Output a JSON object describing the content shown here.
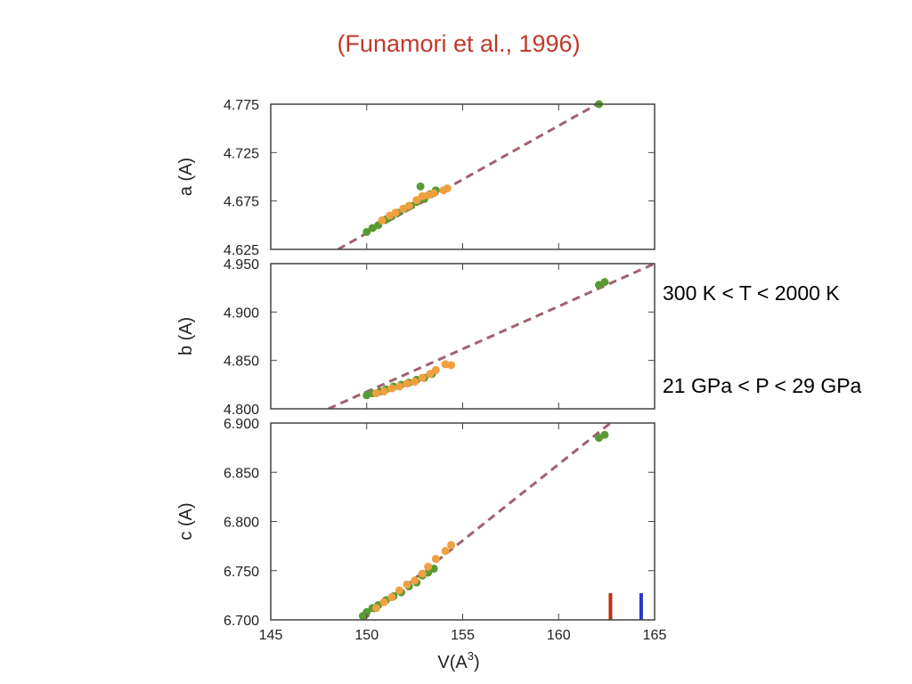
{
  "title": "(Funamori et al., 1996)",
  "annotations": {
    "temperature": "300 K < T < 2000 K",
    "pressure": "21 GPa < P < 29 GPa"
  },
  "colors": {
    "green": "#5a9a32",
    "orange": "#f0a040",
    "fit": "#a0616e",
    "red_marker": "#c03010",
    "blue_marker": "#2a38c8",
    "title": "#c0392b"
  },
  "chart_data": [
    {
      "type": "scatter",
      "panel": "a",
      "ylabel": "a (A)",
      "xlabel": "",
      "xlim": [
        145,
        165
      ],
      "ylim": [
        4.625,
        4.775
      ],
      "yticks": [
        "4.775",
        "4.725",
        "4.675",
        "4.625"
      ],
      "fit_line": [
        [
          148.5,
          4.625
        ],
        [
          162,
          4.775
        ]
      ],
      "series": [
        {
          "color": "green",
          "points": [
            [
              150,
              4.643
            ],
            [
              150.3,
              4.647
            ],
            [
              150.6,
              4.65
            ],
            [
              151,
              4.656
            ],
            [
              151.3,
              4.659
            ],
            [
              151.6,
              4.663
            ],
            [
              152,
              4.667
            ],
            [
              152.3,
              4.67
            ],
            [
              152.6,
              4.674
            ],
            [
              152.8,
              4.69
            ],
            [
              153,
              4.677
            ],
            [
              153.3,
              4.682
            ],
            [
              153.6,
              4.686
            ],
            [
              162.1,
              4.775
            ]
          ]
        },
        {
          "color": "orange",
          "points": [
            [
              150.8,
              4.655
            ],
            [
              151.2,
              4.66
            ],
            [
              151.5,
              4.663
            ],
            [
              151.9,
              4.667
            ],
            [
              152.2,
              4.67
            ],
            [
              152.6,
              4.676
            ],
            [
              152.9,
              4.68
            ],
            [
              153.2,
              4.681
            ],
            [
              153.5,
              4.683
            ],
            [
              154,
              4.686
            ],
            [
              154.2,
              4.688
            ]
          ]
        }
      ]
    },
    {
      "type": "scatter",
      "panel": "b",
      "ylabel": "b (A)",
      "xlabel": "",
      "xlim": [
        145,
        165
      ],
      "ylim": [
        4.8,
        4.95
      ],
      "yticks": [
        "4.950",
        "4.900",
        "4.850",
        "4.800"
      ],
      "fit_line": [
        [
          148,
          4.8
        ],
        [
          165,
          4.95
        ]
      ],
      "series": [
        {
          "color": "green",
          "points": [
            [
              150,
              4.814
            ],
            [
              150.3,
              4.816
            ],
            [
              150.7,
              4.818
            ],
            [
              151,
              4.82
            ],
            [
              151.4,
              4.823
            ],
            [
              151.8,
              4.825
            ],
            [
              152.2,
              4.827
            ],
            [
              152.6,
              4.83
            ],
            [
              153,
              4.832
            ],
            [
              153.4,
              4.836
            ],
            [
              162.1,
              4.928
            ],
            [
              162.4,
              4.931
            ]
          ]
        },
        {
          "color": "orange",
          "points": [
            [
              150.5,
              4.816
            ],
            [
              150.9,
              4.818
            ],
            [
              151.3,
              4.821
            ],
            [
              151.7,
              4.823
            ],
            [
              152.1,
              4.826
            ],
            [
              152.5,
              4.828
            ],
            [
              152.9,
              4.832
            ],
            [
              153.3,
              4.836
            ],
            [
              153.6,
              4.84
            ],
            [
              154.1,
              4.846
            ],
            [
              154.4,
              4.845
            ]
          ]
        }
      ]
    },
    {
      "type": "scatter",
      "panel": "c",
      "ylabel": "c (A)",
      "xlabel": "V(A3)",
      "xlim": [
        145,
        165
      ],
      "ylim": [
        6.7,
        6.9
      ],
      "yticks": [
        "6.900",
        "6.850",
        "6.800",
        "6.750",
        "6.700"
      ],
      "xticks": [
        "145",
        "150",
        "155",
        "160",
        "165"
      ],
      "fit_line": [
        [
          149.8,
          6.7
        ],
        [
          162.7,
          6.9
        ]
      ],
      "markers": [
        {
          "x": 162.7,
          "color": "red_marker"
        },
        {
          "x": 164.3,
          "color": "blue_marker"
        }
      ],
      "series": [
        {
          "color": "green",
          "points": [
            [
              149.8,
              6.704
            ],
            [
              150,
              6.708
            ],
            [
              150.3,
              6.712
            ],
            [
              150.6,
              6.715
            ],
            [
              151,
              6.72
            ],
            [
              151.4,
              6.724
            ],
            [
              151.8,
              6.728
            ],
            [
              152.2,
              6.734
            ],
            [
              152.6,
              6.738
            ],
            [
              152.9,
              6.745
            ],
            [
              153.2,
              6.748
            ],
            [
              153.5,
              6.752
            ],
            [
              162.1,
              6.885
            ],
            [
              162.4,
              6.888
            ]
          ]
        },
        {
          "color": "orange",
          "points": [
            [
              150.5,
              6.712
            ],
            [
              150.9,
              6.718
            ],
            [
              151.3,
              6.723
            ],
            [
              151.7,
              6.73
            ],
            [
              152.1,
              6.736
            ],
            [
              152.5,
              6.74
            ],
            [
              152.9,
              6.747
            ],
            [
              153.2,
              6.754
            ],
            [
              153.6,
              6.762
            ],
            [
              154.1,
              6.77
            ],
            [
              154.4,
              6.776
            ]
          ]
        }
      ]
    }
  ]
}
